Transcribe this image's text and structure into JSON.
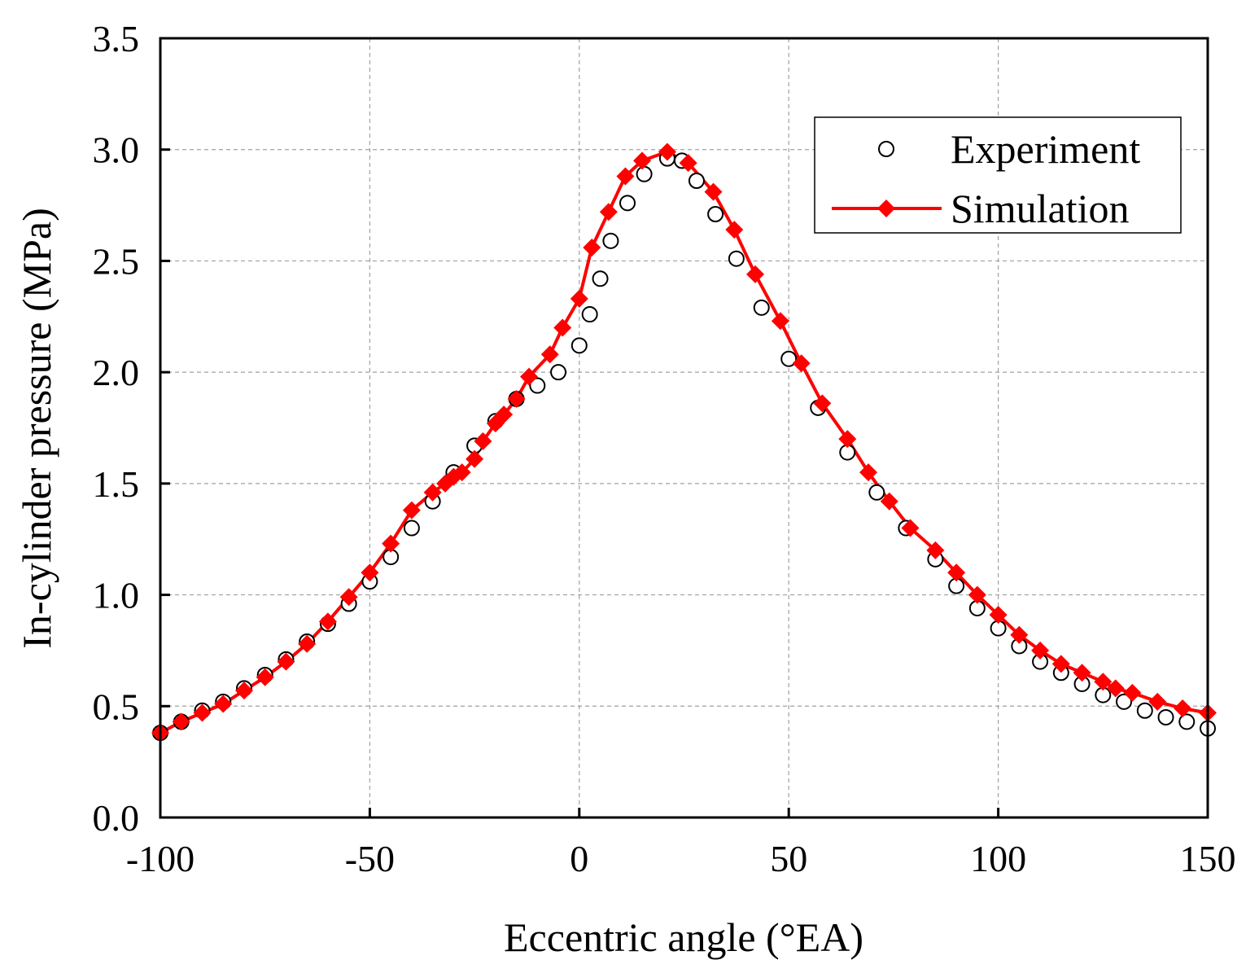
{
  "chart_data": {
    "type": "line",
    "title": "",
    "xlabel": "Eccentric angle (°EA)",
    "ylabel": "In-cylinder pressure (MPa)",
    "xlim": [
      -100,
      150
    ],
    "ylim": [
      0,
      3.5
    ],
    "x_ticks": [
      -100,
      -50,
      0,
      50,
      100,
      150
    ],
    "x_tick_labels": [
      "-100",
      "-50",
      "0",
      "50",
      "100",
      "150"
    ],
    "y_ticks": [
      0,
      0.5,
      1.0,
      1.5,
      2.0,
      2.5,
      3.0,
      3.5
    ],
    "y_tick_labels": [
      "0.0",
      "0.5",
      "1.0",
      "1.5",
      "2.0",
      "2.5",
      "3.0",
      "3.5"
    ],
    "grid": true,
    "legend_position": "top-right",
    "series": [
      {
        "name": "Experiment",
        "style": "open-circle",
        "color": "#000000",
        "x": [
          -100,
          -95,
          -90,
          -85,
          -80,
          -75,
          -70,
          -65,
          -60,
          -55,
          -50,
          -45,
          -40,
          -35,
          -30,
          -25,
          -20,
          -15,
          -10,
          -5,
          0,
          2.5,
          5,
          7.5,
          11.5,
          15.5,
          21,
          24.5,
          28,
          32.5,
          37.5,
          43.5,
          50,
          57,
          64,
          71,
          78,
          85,
          90,
          95,
          100,
          105,
          110,
          115,
          120,
          125,
          130,
          135,
          140,
          145,
          150
        ],
        "y": [
          0.38,
          0.43,
          0.48,
          0.52,
          0.58,
          0.64,
          0.71,
          0.79,
          0.87,
          0.96,
          1.06,
          1.17,
          1.3,
          1.42,
          1.55,
          1.67,
          1.78,
          1.88,
          1.94,
          2.0,
          2.12,
          2.26,
          2.42,
          2.59,
          2.76,
          2.89,
          2.96,
          2.95,
          2.86,
          2.71,
          2.51,
          2.29,
          2.06,
          1.84,
          1.64,
          1.46,
          1.3,
          1.16,
          1.04,
          0.94,
          0.85,
          0.77,
          0.7,
          0.65,
          0.6,
          0.55,
          0.52,
          0.48,
          0.45,
          0.43,
          0.4
        ]
      },
      {
        "name": "Simulation",
        "style": "line-diamond",
        "color": "#ff0000",
        "x": [
          -100,
          -95,
          -90,
          -85,
          -80,
          -75,
          -70,
          -65,
          -60,
          -55,
          -50,
          -45,
          -40,
          -35,
          -32,
          -30,
          -28,
          -25,
          -23,
          -20,
          -18,
          -15,
          -12,
          -7,
          -4,
          0,
          3,
          7,
          11,
          15,
          21,
          26,
          32,
          37,
          42,
          48,
          53,
          58,
          64,
          69,
          74,
          79,
          85,
          90,
          95,
          100,
          105,
          110,
          115,
          120,
          125,
          128,
          132,
          138,
          144,
          150
        ],
        "y": [
          0.38,
          0.43,
          0.47,
          0.51,
          0.57,
          0.63,
          0.7,
          0.78,
          0.88,
          0.99,
          1.1,
          1.23,
          1.38,
          1.46,
          1.5,
          1.53,
          1.55,
          1.61,
          1.69,
          1.77,
          1.81,
          1.88,
          1.98,
          2.08,
          2.2,
          2.33,
          2.56,
          2.72,
          2.88,
          2.95,
          2.99,
          2.94,
          2.81,
          2.64,
          2.44,
          2.23,
          2.04,
          1.86,
          1.7,
          1.55,
          1.42,
          1.3,
          1.2,
          1.1,
          1.0,
          0.91,
          0.82,
          0.75,
          0.69,
          0.65,
          0.61,
          0.58,
          0.56,
          0.52,
          0.49,
          0.47
        ]
      }
    ]
  },
  "legend": {
    "experiment_label": "Experiment",
    "simulation_label": "Simulation"
  },
  "colors": {
    "simulation": "#ff0000",
    "experiment_stroke": "#000000"
  }
}
